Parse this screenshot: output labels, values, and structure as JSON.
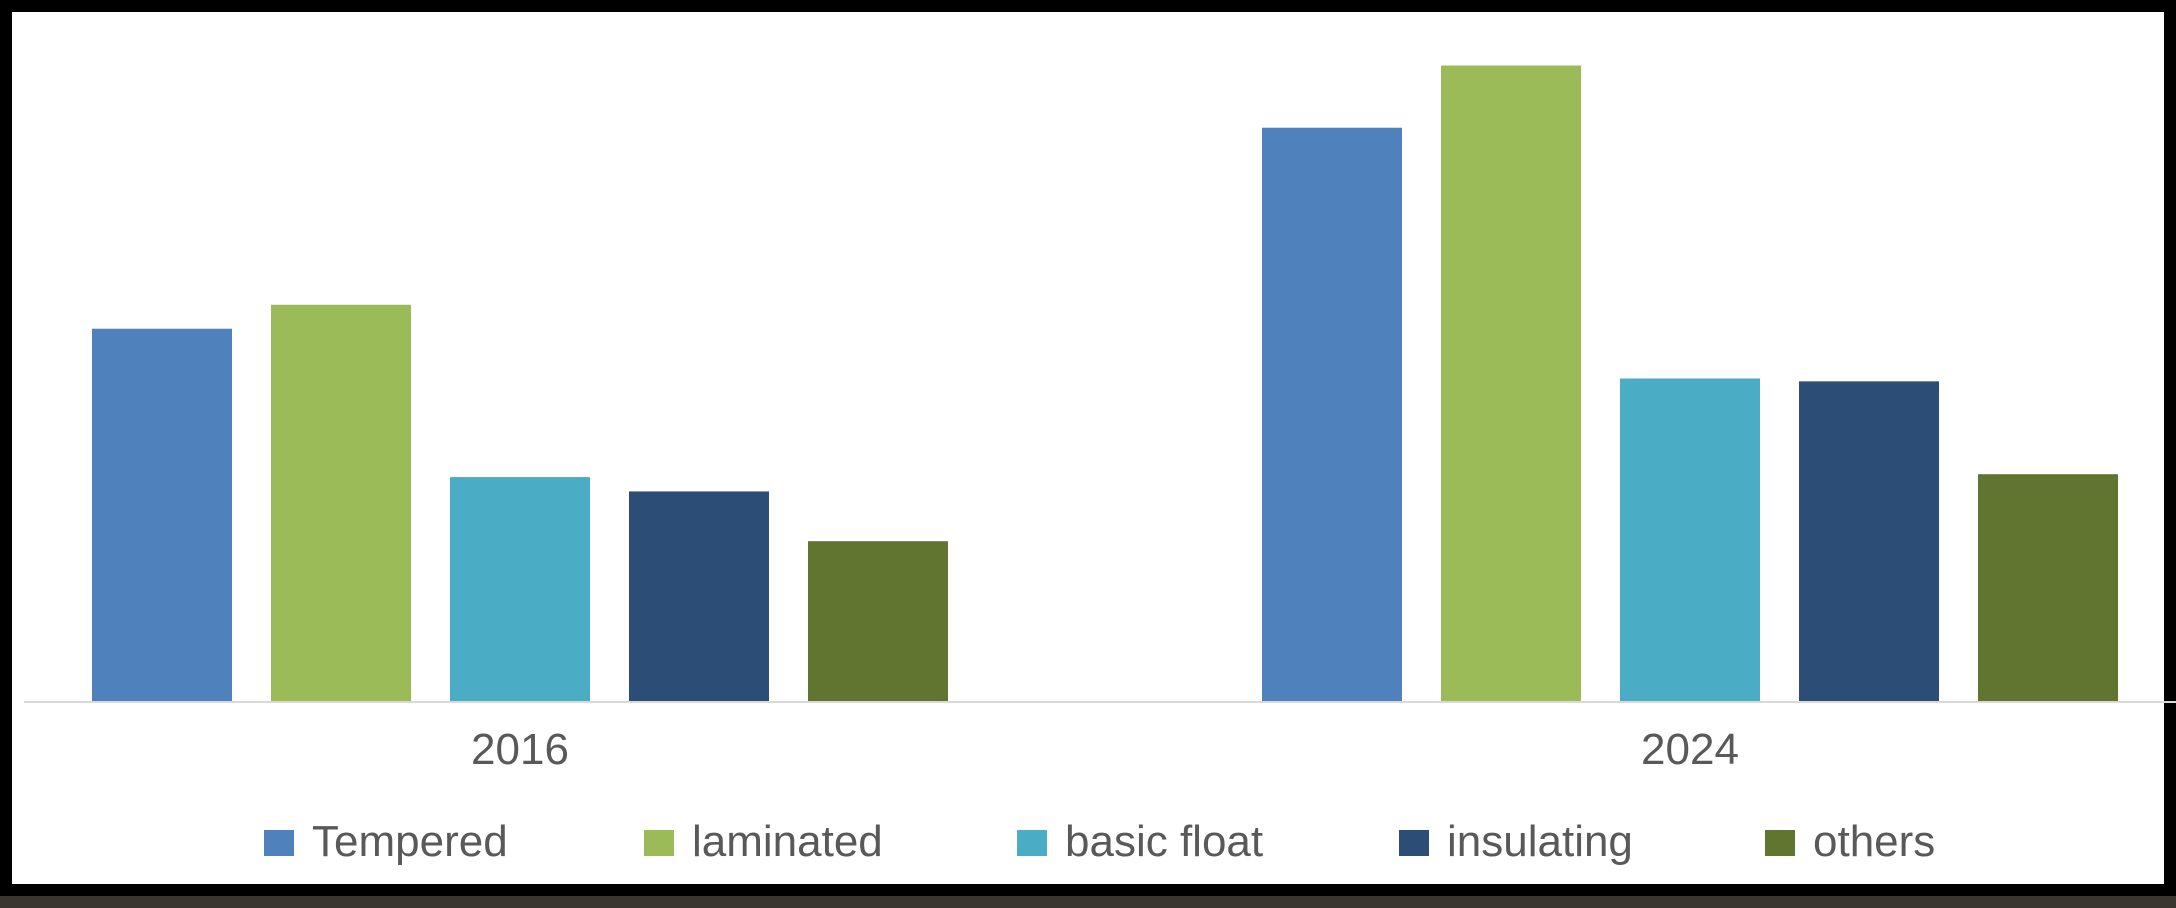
{
  "chart_data": {
    "type": "bar",
    "categories": [
      "2016",
      "2024"
    ],
    "series": [
      {
        "name": "Tempered",
        "color": "#4f81bd",
        "values": [
          3.9,
          6.0
        ]
      },
      {
        "name": "laminated",
        "color": "#9bbb59",
        "values": [
          4.15,
          6.65
        ]
      },
      {
        "name": "basic float",
        "color": "#4bacc6",
        "values": [
          2.35,
          3.38
        ]
      },
      {
        "name": "insulating",
        "color": "#2c4d75",
        "values": [
          2.2,
          3.35
        ]
      },
      {
        "name": "others",
        "color": "#5f7530",
        "values": [
          1.68,
          2.38
        ]
      }
    ],
    "ylim": [
      0,
      7
    ],
    "grid": false,
    "legend_position": "bottom",
    "axis_line_color": "#d9d9d9"
  }
}
